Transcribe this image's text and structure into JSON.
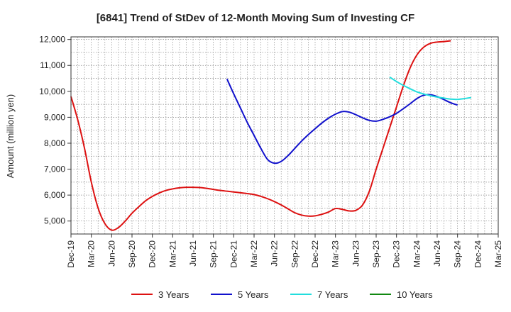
{
  "chart_data": {
    "type": "line",
    "title": "[6841]  Trend of StDev of 12-Month Moving Sum of Investing CF",
    "xlabel": "",
    "ylabel": "Amount (million yen)",
    "ylim": [
      4500,
      12100
    ],
    "yticks": [
      5000,
      6000,
      7000,
      8000,
      9000,
      10000,
      11000,
      12000
    ],
    "ytick_labels": [
      "5,000",
      "6,000",
      "7,000",
      "8,000",
      "9,000",
      "10,000",
      "11,000",
      "12,000"
    ],
    "x_start": "Dec-19",
    "xtick_labels": [
      "Dec-19",
      "Mar-20",
      "Jun-20",
      "Sep-20",
      "Dec-20",
      "Mar-21",
      "Jun-21",
      "Sep-21",
      "Dec-21",
      "Mar-22",
      "Jun-22",
      "Sep-22",
      "Dec-22",
      "Mar-23",
      "Jun-23",
      "Sep-23",
      "Dec-23",
      "Mar-24",
      "Jun-24",
      "Sep-24",
      "Dec-24",
      "Mar-25"
    ],
    "grid": true,
    "legend_position": "bottom",
    "series": [
      {
        "name": "3 Years",
        "color": "#dd1111",
        "start": "Dec-19",
        "values": [
          9800,
          8900,
          7800,
          6500,
          5500,
          4900,
          4650,
          4750,
          5000,
          5300,
          5550,
          5780,
          5950,
          6080,
          6180,
          6240,
          6280,
          6300,
          6300,
          6290,
          6260,
          6220,
          6180,
          6150,
          6120,
          6090,
          6060,
          6020,
          5950,
          5860,
          5750,
          5620,
          5470,
          5320,
          5230,
          5190,
          5200,
          5260,
          5350,
          5480,
          5450,
          5390,
          5410,
          5620,
          6150,
          7000,
          7800,
          8600,
          9400,
          10200,
          10900,
          11400,
          11700,
          11850,
          11900,
          11920,
          11950
        ]
      },
      {
        "name": "5 Years",
        "color": "#1111cc",
        "start": "Nov-21",
        "values": [
          10480,
          9900,
          9350,
          8800,
          8300,
          7800,
          7370,
          7230,
          7300,
          7520,
          7800,
          8080,
          8330,
          8560,
          8780,
          8970,
          9120,
          9220,
          9200,
          9100,
          8980,
          8880,
          8850,
          8920,
          9020,
          9150,
          9330,
          9520,
          9720,
          9850,
          9870,
          9800,
          9680,
          9560,
          9470
        ]
      },
      {
        "name": "7 Years",
        "color": "#22dddd",
        "start": "Nov-23",
        "values": [
          10550,
          10380,
          10230,
          10100,
          9980,
          9900,
          9830,
          9780,
          9740,
          9700,
          9690,
          9720,
          9760
        ]
      },
      {
        "name": "10 Years",
        "color": "#118811",
        "start": "Sep-24",
        "values": []
      }
    ]
  }
}
